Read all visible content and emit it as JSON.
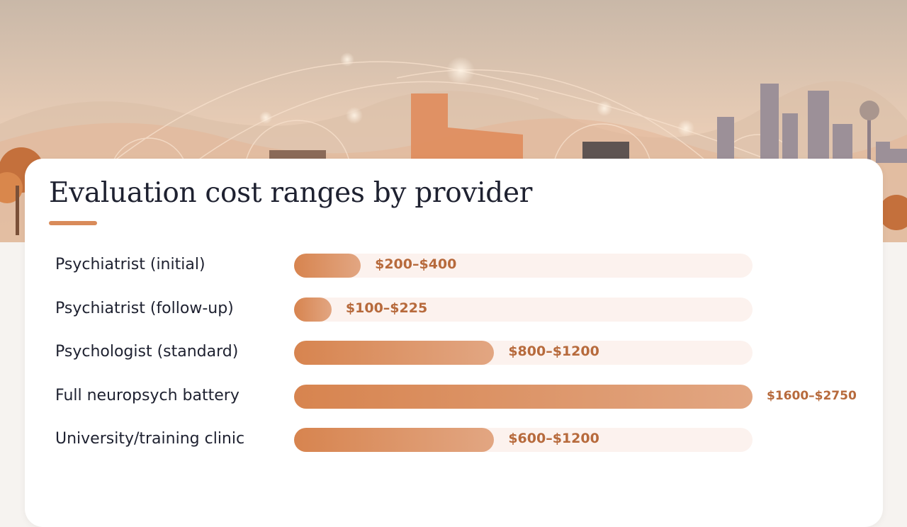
{
  "chart_data": {
    "type": "bar",
    "orientation": "horizontal",
    "title": "Evaluation cost ranges by provider",
    "categories": [
      "Psychiatrist (initial)",
      "Psychiatrist (follow-up)",
      "Psychologist (standard)",
      "Full neuropsych battery",
      "University/training clinic"
    ],
    "value_labels": [
      "$200–$400",
      "$100–$225",
      "$800–$1200",
      "$1600–$2750",
      "$600–$1200"
    ],
    "ranges": [
      [
        200,
        400
      ],
      [
        100,
        225
      ],
      [
        800,
        1200
      ],
      [
        1600,
        2750
      ],
      [
        600,
        1200
      ]
    ],
    "values": [
      400,
      225,
      1200,
      2750,
      1200
    ],
    "xlim": [
      0,
      2750
    ],
    "grid": false,
    "legend": "none",
    "colors": {
      "bar": "#d7844f",
      "bar_end": "#e2a682",
      "track": "#fcf2ee",
      "value_text": "#b76a3c",
      "accent": "#d98b5a"
    }
  }
}
